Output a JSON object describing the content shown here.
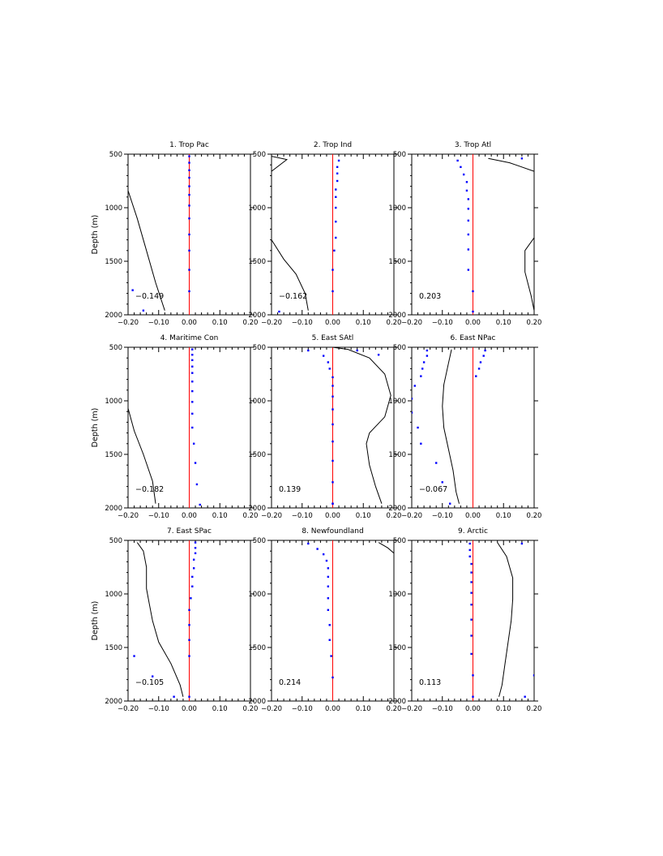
{
  "figure": {
    "width": 818,
    "height": 1055
  },
  "chart_data": [
    {
      "type": "line",
      "title": "1. Trop Pac",
      "ylabel": "Depth (m)",
      "xlim": [
        -0.2,
        0.2
      ],
      "ylim": [
        500,
        2000
      ],
      "xticks": [
        -0.2,
        -0.1,
        0.0,
        0.1,
        0.2
      ],
      "xtick_labels": [
        "−0.20",
        "−0.10",
        "0.00",
        "0.10",
        "0.20"
      ],
      "yticks": [
        500,
        1000,
        1500,
        2000
      ],
      "ytick_labels": [
        "500",
        "1000",
        "1500",
        "2000"
      ],
      "annotation": "−0.149",
      "line": {
        "x": [
          -0.2,
          -0.17,
          -0.14,
          -0.11,
          -0.08
        ],
        "y": [
          840,
          1100,
          1400,
          1700,
          1960
        ]
      },
      "dots": {
        "x": [
          0.0,
          0.0,
          0.0,
          0.0,
          0.0,
          0.0,
          0.0,
          0.0,
          0.0,
          0.0,
          0.0,
          0.0,
          -0.185,
          -0.15
        ],
        "y": [
          520,
          580,
          650,
          720,
          800,
          880,
          980,
          1100,
          1250,
          1400,
          1580,
          1780,
          1770,
          1960
        ]
      }
    },
    {
      "type": "line",
      "title": "2. Trop Ind",
      "xlim": [
        -0.2,
        0.2
      ],
      "ylim": [
        500,
        2000
      ],
      "xticks": [
        -0.2,
        -0.1,
        0.0,
        0.1,
        0.2
      ],
      "xtick_labels": [
        "−0.20",
        "−0.10",
        "0.00",
        "0.10",
        "0.20"
      ],
      "yticks": [
        500,
        1000,
        1500,
        2000
      ],
      "ytick_labels": [
        "500",
        "1000",
        "1500",
        "2000"
      ],
      "annotation": "−0.162",
      "line": {
        "x": [
          -0.2,
          -0.15,
          -0.2
        ],
        "y": [
          660,
          550,
          520
        ]
      },
      "line2": {
        "x": [
          -0.2,
          -0.16,
          -0.12,
          -0.09,
          -0.08
        ],
        "y": [
          1300,
          1480,
          1620,
          1800,
          1960
        ]
      },
      "dots": {
        "x": [
          0.02,
          0.015,
          0.015,
          0.015,
          0.01,
          0.01,
          0.01,
          0.01,
          0.01,
          0.005,
          0.0,
          0.0,
          -0.175
        ],
        "y": [
          560,
          620,
          680,
          750,
          830,
          900,
          1000,
          1130,
          1280,
          1400,
          1580,
          1780,
          1970
        ]
      }
    },
    {
      "type": "line",
      "title": "3. Trop Atl",
      "xlim": [
        -0.2,
        0.2
      ],
      "ylim": [
        500,
        2000
      ],
      "xticks": [
        -0.2,
        -0.1,
        0.0,
        0.1,
        0.2
      ],
      "xtick_labels": [
        "−0.20",
        "−0.10",
        "0.00",
        "0.10",
        "0.20"
      ],
      "yticks": [
        500,
        1000,
        1500,
        2000
      ],
      "ytick_labels": [
        "500",
        "1000",
        "1500",
        "2000"
      ],
      "annotation": "0.203",
      "line": {
        "x": [
          0.05,
          0.12,
          0.2
        ],
        "y": [
          540,
          580,
          660
        ]
      },
      "line2": {
        "x": [
          0.2,
          0.17,
          0.17,
          0.19,
          0.2
        ],
        "y": [
          1280,
          1400,
          1600,
          1820,
          1960
        ]
      },
      "dots": {
        "x": [
          0.16,
          -0.05,
          -0.04,
          -0.03,
          -0.02,
          -0.02,
          -0.015,
          -0.015,
          -0.015,
          -0.015,
          -0.015,
          -0.015,
          0.0,
          0.0
        ],
        "y": [
          540,
          560,
          620,
          690,
          760,
          840,
          920,
          1010,
          1120,
          1250,
          1390,
          1580,
          1780,
          1970
        ]
      }
    },
    {
      "type": "line",
      "title": "4. Maritime Con",
      "ylabel": "Depth (m)",
      "xlim": [
        -0.2,
        0.2
      ],
      "ylim": [
        500,
        2000
      ],
      "xticks": [
        -0.2,
        -0.1,
        0.0,
        0.1,
        0.2
      ],
      "xtick_labels": [
        "−0.20",
        "−0.10",
        "0.00",
        "0.10",
        "0.20"
      ],
      "yticks": [
        500,
        1000,
        1500,
        2000
      ],
      "ytick_labels": [
        "500",
        "1000",
        "1500",
        "2000"
      ],
      "annotation": "−0.182",
      "line": {
        "x": [
          -0.2,
          -0.18,
          -0.15,
          -0.12,
          -0.11
        ],
        "y": [
          1070,
          1280,
          1500,
          1750,
          1960
        ]
      },
      "dots": {
        "x": [
          0.01,
          0.01,
          0.01,
          0.01,
          0.01,
          0.01,
          0.01,
          0.01,
          0.01,
          0.01,
          0.015,
          0.02,
          0.025,
          0.035
        ],
        "y": [
          520,
          570,
          620,
          680,
          740,
          820,
          910,
          1010,
          1120,
          1250,
          1400,
          1580,
          1780,
          1970
        ]
      }
    },
    {
      "type": "line",
      "title": "5. East SAtl",
      "xlim": [
        -0.2,
        0.2
      ],
      "ylim": [
        500,
        2000
      ],
      "xticks": [
        -0.2,
        -0.1,
        0.0,
        0.1,
        0.2
      ],
      "xtick_labels": [
        "−0.20",
        "−0.10",
        "0.00",
        "0.10",
        "0.20"
      ],
      "yticks": [
        500,
        1000,
        1500,
        2000
      ],
      "ytick_labels": [
        "500",
        "1000",
        "1500",
        "2000"
      ],
      "annotation": "0.139",
      "line": {
        "x": [
          0.0,
          0.05,
          0.12,
          0.17,
          0.19,
          0.17,
          0.12,
          0.11,
          0.12,
          0.14,
          0.16
        ],
        "y": [
          500,
          520,
          600,
          750,
          950,
          1150,
          1300,
          1400,
          1600,
          1800,
          1960
        ]
      },
      "dots": {
        "x": [
          -0.08,
          0.08,
          0.15,
          -0.03,
          -0.015,
          -0.01,
          0.0,
          0.0,
          0.0,
          0.0,
          0.0,
          0.0,
          0.0,
          0.0,
          0.0,
          0.0
        ],
        "y": [
          530,
          530,
          570,
          580,
          640,
          700,
          780,
          860,
          960,
          1080,
          1220,
          1380,
          1560,
          1760,
          1960,
          1960
        ]
      }
    },
    {
      "type": "line",
      "title": "6. East NPac",
      "xlim": [
        -0.2,
        0.2
      ],
      "ylim": [
        500,
        2000
      ],
      "xticks": [
        -0.2,
        -0.1,
        0.0,
        0.1,
        0.2
      ],
      "xtick_labels": [
        "−0.20",
        "−0.10",
        "0.00",
        "0.10",
        "0.20"
      ],
      "yticks": [
        500,
        1000,
        1500,
        2000
      ],
      "ytick_labels": [
        "500",
        "1000",
        "1500",
        "2000"
      ],
      "annotation": "−0.067",
      "line": {
        "x": [
          -0.07,
          -0.08,
          -0.095,
          -0.1,
          -0.095,
          -0.08,
          -0.065,
          -0.055,
          -0.045
        ],
        "y": [
          520,
          650,
          850,
          1050,
          1250,
          1450,
          1650,
          1850,
          1960
        ]
      },
      "dots": {
        "x": [
          0.04,
          -0.15,
          0.035,
          -0.15,
          0.025,
          -0.16,
          0.02,
          -0.165,
          0.01,
          -0.17,
          -0.19,
          -0.2,
          -0.2,
          -0.18,
          -0.17,
          -0.12,
          -0.1,
          -0.075
        ],
        "y": [
          530,
          530,
          580,
          580,
          640,
          640,
          700,
          700,
          770,
          770,
          860,
          980,
          1110,
          1250,
          1400,
          1580,
          1760,
          1960
        ]
      }
    },
    {
      "type": "line",
      "title": "7. East SPac",
      "ylabel": "Depth (m)",
      "xlim": [
        -0.2,
        0.2
      ],
      "ylim": [
        500,
        2000
      ],
      "xticks": [
        -0.2,
        -0.1,
        0.0,
        0.1,
        0.2
      ],
      "xtick_labels": [
        "−0.20",
        "−0.10",
        "0.00",
        "0.10",
        "0.20"
      ],
      "yticks": [
        500,
        1000,
        1500,
        2000
      ],
      "ytick_labels": [
        "500",
        "1000",
        "1500",
        "2000"
      ],
      "annotation": "−0.105",
      "line": {
        "x": [
          -0.17,
          -0.15,
          -0.14,
          -0.14,
          -0.13,
          -0.12,
          -0.1,
          -0.06,
          -0.03,
          -0.02
        ],
        "y": [
          520,
          600,
          750,
          950,
          1100,
          1250,
          1450,
          1650,
          1850,
          1960
        ]
      },
      "dots": {
        "x": [
          0.02,
          0.02,
          0.02,
          0.015,
          0.015,
          0.01,
          0.01,
          0.005,
          0.0,
          0.0,
          0.0,
          0.0,
          -0.18,
          -0.12,
          -0.05,
          0.0
        ],
        "y": [
          520,
          570,
          620,
          680,
          760,
          840,
          930,
          1040,
          1150,
          1290,
          1430,
          1580,
          1580,
          1770,
          1960,
          1960
        ]
      }
    },
    {
      "type": "line",
      "title": "8. Newfoundland",
      "xlim": [
        -0.2,
        0.2
      ],
      "ylim": [
        500,
        2000
      ],
      "xticks": [
        -0.2,
        -0.1,
        0.0,
        0.1,
        0.2
      ],
      "xtick_labels": [
        "−0.20",
        "−0.10",
        "0.00",
        "0.10",
        "0.20"
      ],
      "yticks": [
        500,
        1000,
        1500,
        2000
      ],
      "ytick_labels": [
        "500",
        "1000",
        "1500",
        "2000"
      ],
      "annotation": "0.214",
      "line": {
        "x": [
          0.15,
          0.18,
          0.2
        ],
        "y": [
          520,
          570,
          620
        ]
      },
      "dots": {
        "x": [
          -0.08,
          -0.05,
          -0.03,
          -0.02,
          -0.015,
          -0.015,
          -0.015,
          -0.015,
          -0.015,
          -0.01,
          -0.01,
          -0.005,
          0.0
        ],
        "y": [
          530,
          580,
          630,
          690,
          760,
          840,
          930,
          1040,
          1150,
          1290,
          1430,
          1580,
          1780
        ]
      }
    },
    {
      "type": "line",
      "title": "9. Arctic",
      "xlim": [
        -0.2,
        0.2
      ],
      "ylim": [
        500,
        2000
      ],
      "xticks": [
        -0.2,
        -0.1,
        0.0,
        0.1,
        0.2
      ],
      "xtick_labels": [
        "−0.20",
        "−0.10",
        "0.00",
        "0.10",
        "0.20"
      ],
      "yticks": [
        500,
        1000,
        1500,
        2000
      ],
      "ytick_labels": [
        "500",
        "1000",
        "1500",
        "2000"
      ],
      "annotation": "0.113",
      "line": {
        "x": [
          0.08,
          0.11,
          0.13,
          0.13,
          0.125,
          0.115,
          0.105,
          0.095,
          0.085
        ],
        "y": [
          520,
          650,
          850,
          1050,
          1250,
          1450,
          1650,
          1850,
          1960
        ]
      },
      "dots": {
        "x": [
          0.16,
          -0.01,
          -0.01,
          -0.01,
          -0.005,
          -0.005,
          -0.005,
          -0.005,
          -0.005,
          -0.005,
          -0.005,
          -0.005,
          0.0,
          0.2,
          0.17,
          0.0
        ],
        "y": [
          530,
          530,
          590,
          650,
          720,
          800,
          890,
          990,
          1100,
          1240,
          1390,
          1560,
          1760,
          1760,
          1960,
          1960
        ]
      }
    }
  ],
  "colors": {
    "line": "#000000",
    "zero_line": "#ff0000",
    "dots": "#0000ff",
    "axes": "#000000"
  }
}
